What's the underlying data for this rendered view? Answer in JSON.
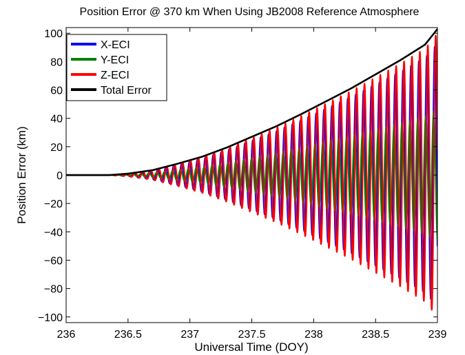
{
  "chart_data": {
    "type": "line",
    "title": "Position Error @ 370 km When Using JB2008 Reference Atmosphere",
    "xlabel": "Universal Time (DOY)",
    "ylabel": "Position Error (km)",
    "xlim": [
      236,
      239
    ],
    "ylim": [
      -104,
      104
    ],
    "xticks": [
      236,
      236.5,
      237,
      237.5,
      238,
      238.5,
      239
    ],
    "xtick_labels": [
      "236",
      "236.5",
      "237",
      "237.5",
      "238",
      "238.5",
      "239"
    ],
    "yticks": [
      -100,
      -80,
      -60,
      -40,
      -20,
      0,
      20,
      40,
      60,
      80,
      100
    ],
    "ytick_labels": [
      "−100",
      "−80",
      "−60",
      "−40",
      "−20",
      "0",
      "20",
      "40",
      "60",
      "80",
      "100"
    ],
    "grid": false,
    "legend_position": "top-left",
    "onset_doy": 236.35,
    "orbit_period_days": 0.0639,
    "envelope": {
      "x": [
        236.0,
        236.35,
        236.5,
        236.7,
        236.9,
        237.1,
        237.3,
        237.5,
        237.7,
        237.9,
        238.1,
        238.3,
        238.5,
        238.7,
        238.9,
        239.0
      ],
      "y": [
        0.0,
        0.0,
        1.0,
        3.5,
        8.0,
        13.0,
        19.5,
        27.0,
        34.5,
        43.0,
        52.0,
        61.0,
        71.0,
        81.0,
        92.0,
        103.0
      ]
    },
    "series": [
      {
        "name": "X-ECI",
        "color": "#0000ff",
        "amplitude_fraction": 0.9,
        "phase_cycles": 0.12
      },
      {
        "name": "Y-ECI",
        "color": "#008000",
        "amplitude_fraction": 0.45,
        "phase_cycles": 0.25
      },
      {
        "name": "Z-ECI",
        "color": "#ff0000",
        "amplitude_fraction": 0.97,
        "phase_cycles": 0.0
      },
      {
        "name": "Total Error",
        "color": "#000000",
        "amplitude_fraction": 1.0,
        "is_envelope": true
      }
    ]
  }
}
